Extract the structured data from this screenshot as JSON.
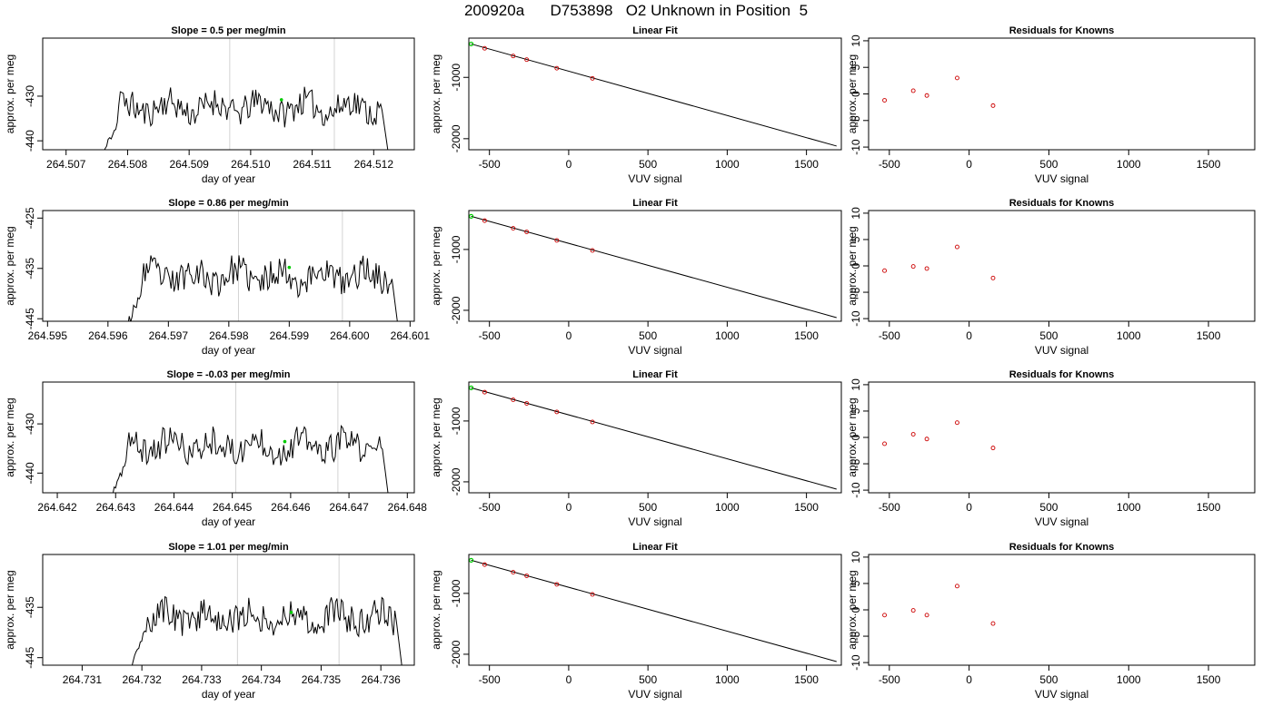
{
  "header": {
    "run_id": "200920a",
    "sample_id": "D753898",
    "description": "O2 Unknown in Position  5"
  },
  "colors": {
    "line": "#000000",
    "grid_vline": "#d3d3d3",
    "highlight_point": "#00cc00",
    "known_point": "#cc0000"
  },
  "chart_data": [
    {
      "type": "line",
      "row": 0,
      "title_prefix": "Slope = ",
      "title_value": "0.5",
      "title_suffix": " per meg/min",
      "xlabel": "day of year",
      "ylabel": "approx. per meg",
      "xlim": [
        264.50662,
        264.51266
      ],
      "ylim": [
        -442,
        -417
      ],
      "xticks": [
        "264.507",
        "264.508",
        "264.509",
        "264.510",
        "264.511",
        "264.512"
      ],
      "yticks": [
        -440,
        -430
      ],
      "vlines": [
        264.50966,
        264.51136
      ],
      "x_start": 264.50756,
      "x_end": 264.51226,
      "base": -432.5,
      "amp": 3.2,
      "highlight": [
        264.5105,
        -430.8
      ],
      "seed": 11
    },
    {
      "type": "scatter_line",
      "row": 0,
      "title": "Linear Fit",
      "xlabel": "VUV signal",
      "ylabel": "approx. per meg",
      "xlim": [
        -630,
        1720
      ],
      "ylim": [
        -2180,
        -360
      ],
      "xticks": [
        -500,
        0,
        500,
        1000,
        1500
      ],
      "yticks": [
        -1000,
        -2000
      ],
      "fit_line": [
        [
          -615,
          -455
        ],
        [
          1690,
          -2120
        ]
      ],
      "known_points": [
        [
          -530,
          -526
        ],
        [
          -350,
          -652
        ],
        [
          -265,
          -711
        ],
        [
          -75,
          -851
        ],
        [
          150,
          -1016
        ]
      ],
      "highlight": [
        -615,
        -455
      ]
    },
    {
      "type": "scatter",
      "row": 0,
      "title": "Residuals for Knowns",
      "xlabel": "VUV signal",
      "ylabel": "",
      "xlim": [
        -630,
        1790
      ],
      "ylim": [
        -10.5,
        10.5
      ],
      "xticks": [
        -500,
        0,
        500,
        1000,
        1500
      ],
      "yticks": [
        -10,
        -5,
        0,
        5,
        10
      ],
      "points": [
        [
          -530,
          -1.2
        ],
        [
          -350,
          0.6
        ],
        [
          -265,
          -0.3
        ],
        [
          -75,
          3.0
        ],
        [
          150,
          -2.2
        ]
      ]
    },
    {
      "type": "line",
      "row": 1,
      "title_prefix": "Slope = ",
      "title_value": "0.86",
      "title_suffix": " per meg/min",
      "xlabel": "day of year",
      "ylabel": "approx. per meg",
      "xlim": [
        264.59492,
        264.60107
      ],
      "ylim": [
        -445.5,
        -423.5
      ],
      "xticks": [
        "264.595",
        "264.596",
        "264.597",
        "264.598",
        "264.599",
        "264.600",
        "264.601"
      ],
      "yticks": [
        -445,
        -435,
        -425
      ],
      "vlines": [
        264.59816,
        264.59988
      ],
      "x_start": 264.59628,
      "x_end": 264.60082,
      "base": -436.5,
      "amp": 3.0,
      "highlight": [
        264.599,
        -434.8
      ],
      "seed": 23
    },
    {
      "type": "scatter_line",
      "row": 1,
      "title": "Linear Fit",
      "xlabel": "VUV signal",
      "ylabel": "approx. per meg",
      "xlim": [
        -630,
        1720
      ],
      "ylim": [
        -2180,
        -360
      ],
      "xticks": [
        -500,
        0,
        500,
        1000,
        1500
      ],
      "yticks": [
        -1000,
        -2000
      ],
      "fit_line": [
        [
          -615,
          -455
        ],
        [
          1690,
          -2120
        ]
      ],
      "known_points": [
        [
          -530,
          -526
        ],
        [
          -350,
          -652
        ],
        [
          -265,
          -711
        ],
        [
          -75,
          -851
        ],
        [
          150,
          -1016
        ]
      ],
      "highlight": [
        -615,
        -455
      ]
    },
    {
      "type": "scatter",
      "row": 1,
      "title": "Residuals for Knowns",
      "xlabel": "VUV signal",
      "ylabel": "",
      "xlim": [
        -630,
        1790
      ],
      "ylim": [
        -10.5,
        10.5
      ],
      "xticks": [
        -500,
        0,
        500,
        1000,
        1500
      ],
      "yticks": [
        -10,
        -5,
        0,
        5,
        10
      ],
      "points": [
        [
          -530,
          -0.9
        ],
        [
          -350,
          -0.1
        ],
        [
          -265,
          -0.5
        ],
        [
          -75,
          3.6
        ],
        [
          150,
          -2.3
        ]
      ]
    },
    {
      "type": "line",
      "row": 2,
      "title_prefix": "Slope = ",
      "title_value": "-0.03",
      "title_suffix": " per meg/min",
      "xlabel": "day of year",
      "ylabel": "approx. per meg",
      "xlim": [
        264.64175,
        264.64812
      ],
      "ylim": [
        -444,
        -421.5
      ],
      "xticks": [
        "264.642",
        "264.643",
        "264.644",
        "264.645",
        "264.646",
        "264.647",
        "264.648"
      ],
      "yticks": [
        -440,
        -430
      ],
      "vlines": [
        264.64506,
        264.64681
      ],
      "x_start": 264.6429,
      "x_end": 264.6477,
      "base": -434.5,
      "amp": 3.0,
      "highlight": [
        264.6459,
        -433.6
      ],
      "seed": 37
    },
    {
      "type": "scatter_line",
      "row": 2,
      "title": "Linear Fit",
      "xlabel": "VUV signal",
      "ylabel": "approx. per meg",
      "xlim": [
        -630,
        1720
      ],
      "ylim": [
        -2180,
        -360
      ],
      "xticks": [
        -500,
        0,
        500,
        1000,
        1500
      ],
      "yticks": [
        -1000,
        -2000
      ],
      "fit_line": [
        [
          -615,
          -455
        ],
        [
          1690,
          -2120
        ]
      ],
      "known_points": [
        [
          -530,
          -526
        ],
        [
          -350,
          -652
        ],
        [
          -265,
          -711
        ],
        [
          -75,
          -851
        ],
        [
          150,
          -1016
        ]
      ],
      "highlight": [
        -615,
        -455
      ]
    },
    {
      "type": "scatter",
      "row": 2,
      "title": "Residuals for Knowns",
      "xlabel": "VUV signal",
      "ylabel": "",
      "xlim": [
        -630,
        1790
      ],
      "ylim": [
        -10.5,
        10.5
      ],
      "xticks": [
        -500,
        0,
        500,
        1000,
        1500
      ],
      "yticks": [
        -10,
        -5,
        0,
        5,
        10
      ],
      "points": [
        [
          -530,
          -1.2
        ],
        [
          -350,
          0.6
        ],
        [
          -265,
          -0.3
        ],
        [
          -75,
          2.8
        ],
        [
          150,
          -2.0
        ]
      ]
    },
    {
      "type": "line",
      "row": 3,
      "title_prefix": "Slope = ",
      "title_value": "1.01",
      "title_suffix": " per meg/min",
      "xlabel": "day of year",
      "ylabel": "approx. per meg",
      "xlim": [
        264.73034,
        264.73656
      ],
      "ylim": [
        -446.5,
        -424.5
      ],
      "xticks": [
        "264.731",
        "264.732",
        "264.733",
        "264.734",
        "264.735",
        "264.736"
      ],
      "yticks": [
        -445,
        -435
      ],
      "vlines": [
        264.7336,
        264.7353
      ],
      "x_start": 264.73178,
      "x_end": 264.73638,
      "base": -437.0,
      "amp": 3.0,
      "highlight": [
        264.7345,
        -436.0
      ],
      "seed": 53
    },
    {
      "type": "scatter_line",
      "row": 3,
      "title": "Linear Fit",
      "xlabel": "VUV signal",
      "ylabel": "approx. per meg",
      "xlim": [
        -630,
        1720
      ],
      "ylim": [
        -2180,
        -360
      ],
      "xticks": [
        -500,
        0,
        500,
        1000,
        1500
      ],
      "yticks": [
        -1000,
        -2000
      ],
      "fit_line": [
        [
          -615,
          -455
        ],
        [
          1690,
          -2120
        ]
      ],
      "known_points": [
        [
          -530,
          -526
        ],
        [
          -350,
          -652
        ],
        [
          -265,
          -711
        ],
        [
          -75,
          -851
        ],
        [
          150,
          -1016
        ]
      ],
      "highlight": [
        -615,
        -455
      ]
    },
    {
      "type": "scatter",
      "row": 3,
      "title": "Residuals for Knowns",
      "xlabel": "VUV signal",
      "ylabel": "",
      "xlim": [
        -630,
        1790
      ],
      "ylim": [
        -10.5,
        10.5
      ],
      "xticks": [
        -500,
        0,
        500,
        1000,
        1500
      ],
      "yticks": [
        -10,
        -5,
        0,
        5,
        10
      ],
      "points": [
        [
          -530,
          -1.0
        ],
        [
          -350,
          -0.1
        ],
        [
          -265,
          -1.0
        ],
        [
          -75,
          4.5
        ],
        [
          150,
          -2.6
        ]
      ]
    }
  ]
}
